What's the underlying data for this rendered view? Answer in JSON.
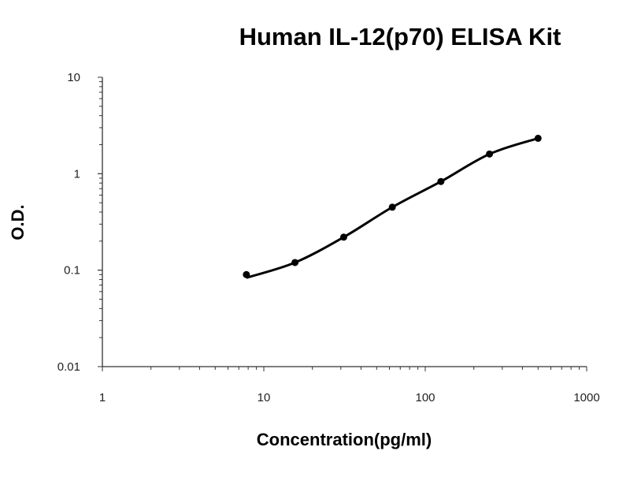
{
  "chart_data": {
    "type": "scatter",
    "title": "Human IL-12(p70) ELISA Kit",
    "xlabel": "Concentration(pg/ml)",
    "ylabel": "O.D.",
    "x_scale": "log",
    "y_scale": "log",
    "xlim": [
      1,
      1000
    ],
    "ylim": [
      0.01,
      10
    ],
    "x_ticks": [
      "1",
      "10",
      "100",
      "1000"
    ],
    "y_ticks": [
      "0.01",
      "0.1",
      "1",
      "10"
    ],
    "grid": false,
    "legend": "none",
    "series": [
      {
        "x": [
          7.8,
          15.6,
          31.25,
          62.5,
          125,
          250,
          500
        ],
        "y": [
          0.09,
          0.12,
          0.22,
          0.45,
          0.83,
          1.6,
          2.33
        ],
        "marker": "circle",
        "fit_line": true,
        "color": "#000000"
      }
    ]
  }
}
